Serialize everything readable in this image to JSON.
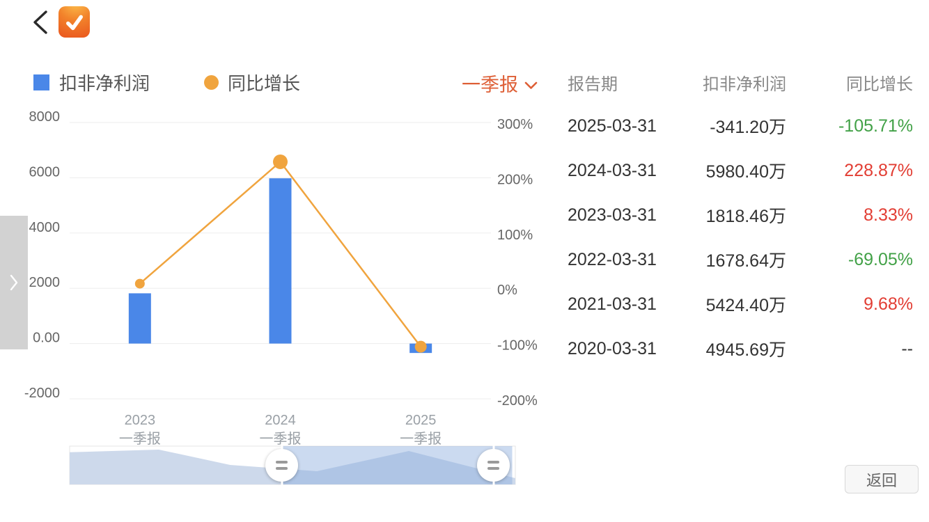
{
  "legend": {
    "items": [
      {
        "label": "扣非净利润",
        "color": "#4a87e8",
        "shape": "square"
      },
      {
        "label": "同比增长",
        "color": "#f0a43e",
        "shape": "circle"
      }
    ]
  },
  "period_selector": {
    "value": "一季报",
    "color": "#de5f36"
  },
  "chart_data": {
    "type": "bar+line",
    "categories": [
      [
        "2023",
        "一季报"
      ],
      [
        "2024",
        "一季报"
      ],
      [
        "2025",
        "一季报"
      ]
    ],
    "series": [
      {
        "name": "扣非净利润",
        "type": "bar",
        "axis": "left",
        "unit": "万",
        "color": "#4a87e8",
        "values": [
          1818.46,
          5980.4,
          -341.2
        ]
      },
      {
        "name": "同比增长",
        "type": "line",
        "axis": "right",
        "unit": "%",
        "color": "#f0a43e",
        "values": [
          8.33,
          228.87,
          -105.71
        ]
      }
    ],
    "left_axis": {
      "ticks": [
        "8000",
        "6000",
        "4000",
        "2000",
        "0.00",
        "-2000"
      ],
      "max": 8000,
      "min": -2000
    },
    "right_axis": {
      "ticks": [
        "300%",
        "200%",
        "100%",
        "0%",
        "-100%",
        "-200%"
      ],
      "max": 300,
      "min": -200
    },
    "grid": true,
    "legend_position": "top"
  },
  "slider": {
    "area_profile": [
      [
        0,
        0.16
      ],
      [
        0.2,
        0.09
      ],
      [
        0.36,
        0.49
      ],
      [
        0.555,
        0.655
      ],
      [
        0.761,
        0.127
      ],
      [
        1,
        0.836
      ]
    ],
    "window": [
      0.477,
      0.993
    ],
    "handle_icon": "double-bar"
  },
  "table": {
    "headers": [
      "报告期",
      "扣非净利润",
      "同比增长"
    ],
    "rows": [
      {
        "date": "2025-03-31",
        "profit": "-341.20万",
        "growth": "-105.71%",
        "trend": "down"
      },
      {
        "date": "2024-03-31",
        "profit": "5980.40万",
        "growth": "228.87%",
        "trend": "up"
      },
      {
        "date": "2023-03-31",
        "profit": "1818.46万",
        "growth": "8.33%",
        "trend": "up"
      },
      {
        "date": "2022-03-31",
        "profit": "1678.64万",
        "growth": "-69.05%",
        "trend": "down"
      },
      {
        "date": "2021-03-31",
        "profit": "5424.40万",
        "growth": "9.68%",
        "trend": "up"
      },
      {
        "date": "2020-03-31",
        "profit": "4945.69万",
        "growth": "--",
        "trend": "flat"
      }
    ]
  },
  "colors": {
    "up_red": "#e23d33",
    "down_green": "#42a147",
    "accent": "#de5f36",
    "bar_blue": "#4a87e8",
    "line_orange": "#f0a43e",
    "grid_line": "#ededed"
  },
  "back_button": {
    "label": "返回"
  }
}
